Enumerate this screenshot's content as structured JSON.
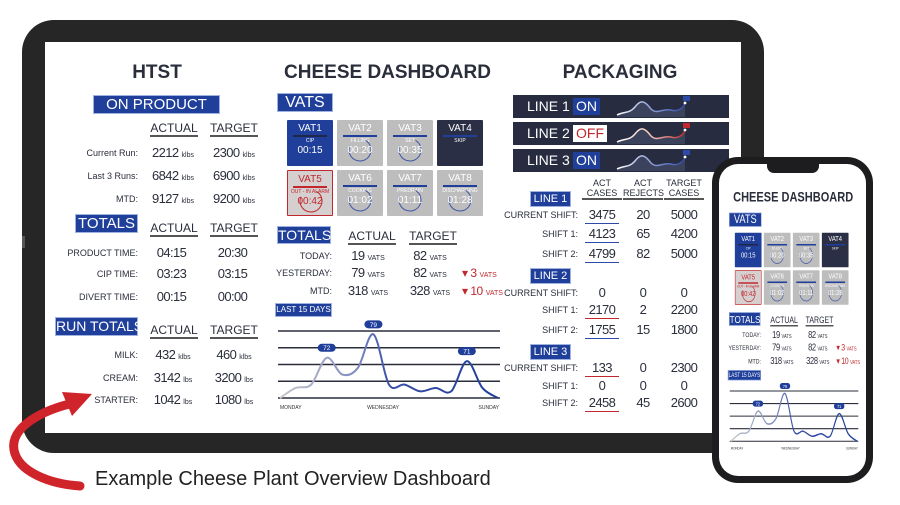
{
  "caption": "Example Cheese Plant Overview Dashboard",
  "colors": {
    "brand_blue": "#1f3f9a",
    "alarm_red": "#c0282d",
    "dark_panel": "#272c41",
    "tile_gray": "#bdbdbd"
  },
  "htst": {
    "title": "HTST",
    "sections": [
      {
        "label": "ON PRODUCT",
        "headers": [
          "ACTUAL",
          "TARGET"
        ],
        "rows": [
          {
            "label": "Current Run:",
            "actual": "2212",
            "actual_unit": "klbs",
            "target": "2300",
            "target_unit": "klbs"
          },
          {
            "label": "Last 3 Runs:",
            "actual": "6842",
            "actual_unit": "klbs",
            "target": "6900",
            "target_unit": "klbs"
          },
          {
            "label": "MTD:",
            "actual": "9127",
            "actual_unit": "klbs",
            "target": "9200",
            "target_unit": "klbs"
          }
        ]
      },
      {
        "label": "TOTALS",
        "headers": [
          "ACTUAL",
          "TARGET"
        ],
        "rows": [
          {
            "label": "PRODUCT TIME:",
            "actual": "04:15",
            "actual_unit": "",
            "target": "20:30",
            "target_unit": ""
          },
          {
            "label": "CIP TIME:",
            "actual": "03:23",
            "actual_unit": "",
            "target": "03:15",
            "target_unit": ""
          },
          {
            "label": "DIVERT TIME:",
            "actual": "00:15",
            "actual_unit": "",
            "target": "00:00",
            "target_unit": ""
          }
        ]
      },
      {
        "label": "RUN TOTALS",
        "headers": [
          "ACTUAL",
          "TARGET"
        ],
        "rows": [
          {
            "label": "MILK:",
            "actual": "432",
            "actual_unit": "klbs",
            "target": "460",
            "target_unit": "klbs"
          },
          {
            "label": "CREAM:",
            "actual": "3142",
            "actual_unit": "lbs",
            "target": "3200",
            "target_unit": "lbs"
          },
          {
            "label": "STARTER:",
            "actual": "1042",
            "actual_unit": "lbs",
            "target": "1080",
            "target_unit": "lbs"
          }
        ]
      }
    ]
  },
  "cheese": {
    "title": "CHEESE DASHBOARD",
    "vats_label": "VATS",
    "vats": [
      {
        "name": "VAT1",
        "status": "CIP",
        "time": "00:15",
        "state": "active"
      },
      {
        "name": "VAT2",
        "status": "FILLING",
        "time": "00:20",
        "state": "running"
      },
      {
        "name": "VAT3",
        "status": "SET",
        "time": "00:35",
        "state": "running"
      },
      {
        "name": "VAT4",
        "status": "SKIP",
        "time": "",
        "state": "skip"
      },
      {
        "name": "VAT5",
        "status": "OUT - IN ALARM",
        "time": "00:42",
        "state": "alarm"
      },
      {
        "name": "VAT6",
        "status": "COOKING",
        "time": "01:02",
        "state": "running"
      },
      {
        "name": "VAT7",
        "status": "PREDRAIN",
        "time": "01:11",
        "state": "running"
      },
      {
        "name": "VAT8",
        "status": "DISCHARGING",
        "time": "01:28",
        "state": "running"
      }
    ],
    "totals_label": "TOTALS",
    "headers": [
      "ACTUAL",
      "TARGET"
    ],
    "unit": "VATS",
    "totals": [
      {
        "label": "TODAY:",
        "actual": "19",
        "target": "82",
        "delta": ""
      },
      {
        "label": "YESTERDAY:",
        "actual": "79",
        "target": "82",
        "delta": "3"
      },
      {
        "label": "MTD:",
        "actual": "318",
        "target": "328",
        "delta": "10"
      }
    ],
    "last15_label": "LAST 15 DAYS"
  },
  "chart_data": {
    "type": "line",
    "title": "LAST 15 DAYS",
    "x": [
      1,
      2,
      3,
      4,
      5,
      6,
      7,
      8,
      9,
      10,
      11,
      12,
      13,
      14,
      15
    ],
    "values": [
      60,
      63,
      64,
      72,
      67,
      69,
      79,
      64,
      64,
      62,
      63,
      62,
      71,
      63,
      60
    ],
    "point_labels": {
      "3": "72",
      "6": "79",
      "12": "71"
    },
    "tick_labels": [
      "MONDAY",
      "WEDNESDAY",
      "SUNDAY"
    ],
    "ylim": [
      60,
      80
    ],
    "grid": true
  },
  "packaging": {
    "title": "PACKAGING",
    "lines": [
      {
        "label": "LINE 1",
        "status": "ON"
      },
      {
        "label": "LINE 2",
        "status": "OFF"
      },
      {
        "label": "LINE 3",
        "status": "ON"
      }
    ],
    "headers": [
      [
        "ACT",
        "CASES"
      ],
      [
        "ACT",
        "REJECTS"
      ],
      [
        "TARGET",
        "CASES"
      ]
    ],
    "tables": [
      {
        "label": "LINE 1",
        "rows": [
          {
            "label": "CURRENT SHIFT:",
            "act": "3475",
            "rej": "20",
            "target": "5000",
            "mark": "blue"
          },
          {
            "label": "SHIFT 1:",
            "act": "4123",
            "rej": "65",
            "target": "4200",
            "mark": "blue"
          },
          {
            "label": "SHIFT 2:",
            "act": "4799",
            "rej": "82",
            "target": "5000",
            "mark": "blue"
          }
        ]
      },
      {
        "label": "LINE 2",
        "rows": [
          {
            "label": "CURRENT SHIFT:",
            "act": "0",
            "rej": "0",
            "target": "0",
            "mark": ""
          },
          {
            "label": "SHIFT 1:",
            "act": "2170",
            "rej": "2",
            "target": "2200",
            "mark": "red"
          },
          {
            "label": "SHIFT 2:",
            "act": "1755",
            "rej": "15",
            "target": "1800",
            "mark": "blue"
          }
        ]
      },
      {
        "label": "LINE 3",
        "rows": [
          {
            "label": "CURRENT SHIFT:",
            "act": "133",
            "rej": "0",
            "target": "2300",
            "mark": "red"
          },
          {
            "label": "SHIFT 1:",
            "act": "0",
            "rej": "0",
            "target": "0",
            "mark": ""
          },
          {
            "label": "SHIFT 2:",
            "act": "2458",
            "rej": "45",
            "target": "2600",
            "mark": "red"
          }
        ]
      }
    ]
  }
}
